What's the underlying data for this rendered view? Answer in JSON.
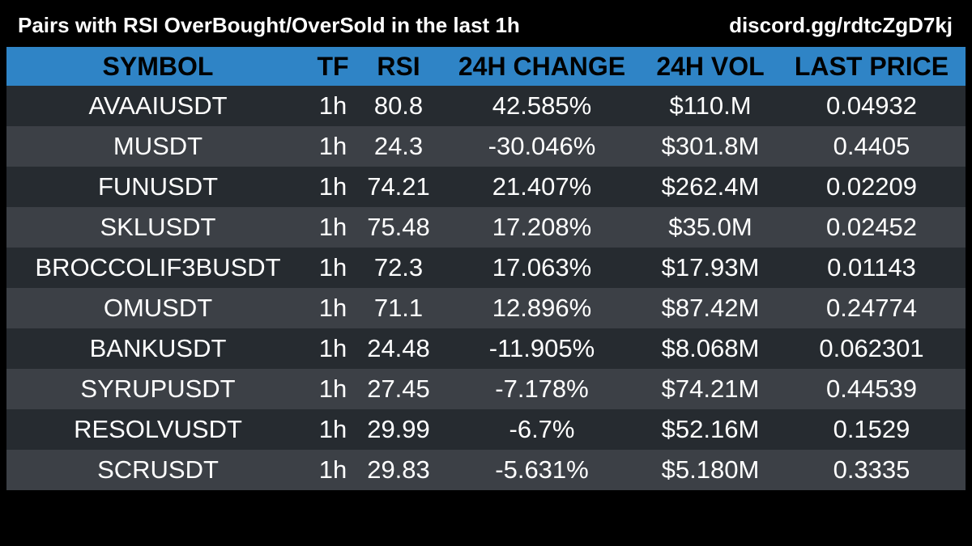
{
  "header": {
    "title": "Pairs with RSI OverBought/OverSold in the last 1h",
    "link": "discord.gg/rdtcZgD7kj"
  },
  "colors": {
    "background": "#000000",
    "header_row": "#2f84c6",
    "row_dark": "#262b30",
    "row_light": "#3c4046",
    "text": "#ffffff",
    "header_text": "#000000"
  },
  "table": {
    "columns": [
      "SYMBOL",
      "TF",
      "RSI",
      "24H CHANGE",
      "24H VOL",
      "LAST PRICE"
    ],
    "rows": [
      [
        "AVAAIUSDT",
        "1h",
        "80.8",
        "42.585%",
        "$110.M",
        "0.04932"
      ],
      [
        "MUSDT",
        "1h",
        "24.3",
        "-30.046%",
        "$301.8M",
        "0.4405"
      ],
      [
        "FUNUSDT",
        "1h",
        "74.21",
        "21.407%",
        "$262.4M",
        "0.02209"
      ],
      [
        "SKLUSDT",
        "1h",
        "75.48",
        "17.208%",
        "$35.0M",
        "0.02452"
      ],
      [
        "BROCCOLIF3BUSDT",
        "1h",
        "72.3",
        "17.063%",
        "$17.93M",
        "0.01143"
      ],
      [
        "OMUSDT",
        "1h",
        "71.1",
        "12.896%",
        "$87.42M",
        "0.24774"
      ],
      [
        "BANKUSDT",
        "1h",
        "24.48",
        "-11.905%",
        "$8.068M",
        "0.062301"
      ],
      [
        "SYRUPUSDT",
        "1h",
        "27.45",
        "-7.178%",
        "$74.21M",
        "0.44539"
      ],
      [
        "RESOLVUSDT",
        "1h",
        "29.99",
        "-6.7%",
        "$52.16M",
        "0.1529"
      ],
      [
        "SCRUSDT",
        "1h",
        "29.83",
        "-5.631%",
        "$5.180M",
        "0.3335"
      ]
    ]
  }
}
